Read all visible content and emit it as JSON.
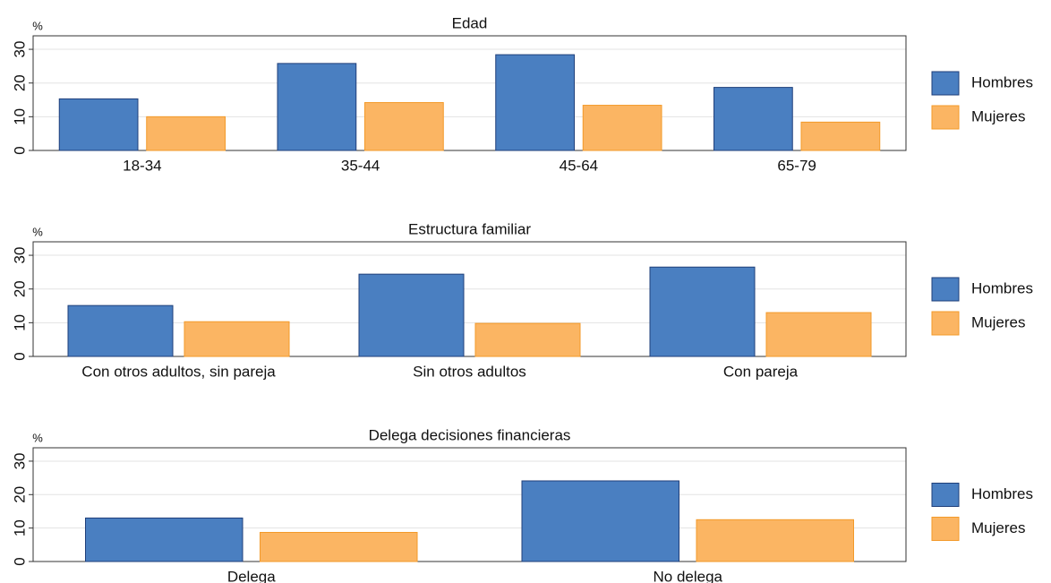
{
  "chart_data": [
    {
      "type": "bar",
      "title": "Edad",
      "ylabel": "%",
      "categories": [
        "18-34",
        "35-44",
        "45-64",
        "65-79"
      ],
      "series": [
        {
          "name": "Hombres",
          "color": "#4a7fc1",
          "values": [
            15.3,
            25.8,
            28.4,
            18.7
          ]
        },
        {
          "name": "Mujeres",
          "color": "#fbb563",
          "values": [
            10,
            14.2,
            13.4,
            8.4
          ]
        }
      ],
      "ylim": [
        0,
        34
      ],
      "yticks": [
        0,
        10,
        20,
        30
      ],
      "grid": true,
      "legend": "right"
    },
    {
      "type": "bar",
      "title": "Estructura familiar",
      "ylabel": "%",
      "categories": [
        "Con otros adultos, sin pareja",
        "Sin otros adultos",
        "Con pareja"
      ],
      "series": [
        {
          "name": "Hombres",
          "color": "#4a7fc1",
          "values": [
            15.1,
            24.4,
            26.5
          ]
        },
        {
          "name": "Mujeres",
          "color": "#fbb563",
          "values": [
            10.3,
            9.8,
            13
          ]
        }
      ],
      "ylim": [
        0,
        34
      ],
      "yticks": [
        0,
        10,
        20,
        30
      ],
      "grid": true,
      "legend": "right"
    },
    {
      "type": "bar",
      "title": "Delega decisiones financieras",
      "ylabel": "%",
      "categories": [
        "Delega",
        "No delega"
      ],
      "series": [
        {
          "name": "Hombres",
          "color": "#4a7fc1",
          "values": [
            13,
            24.1
          ]
        },
        {
          "name": "Mujeres",
          "color": "#fbb563",
          "values": [
            8.7,
            12.5
          ]
        }
      ],
      "ylim": [
        0,
        34
      ],
      "yticks": [
        0,
        10,
        20,
        30
      ],
      "grid": true,
      "legend": "right"
    }
  ]
}
